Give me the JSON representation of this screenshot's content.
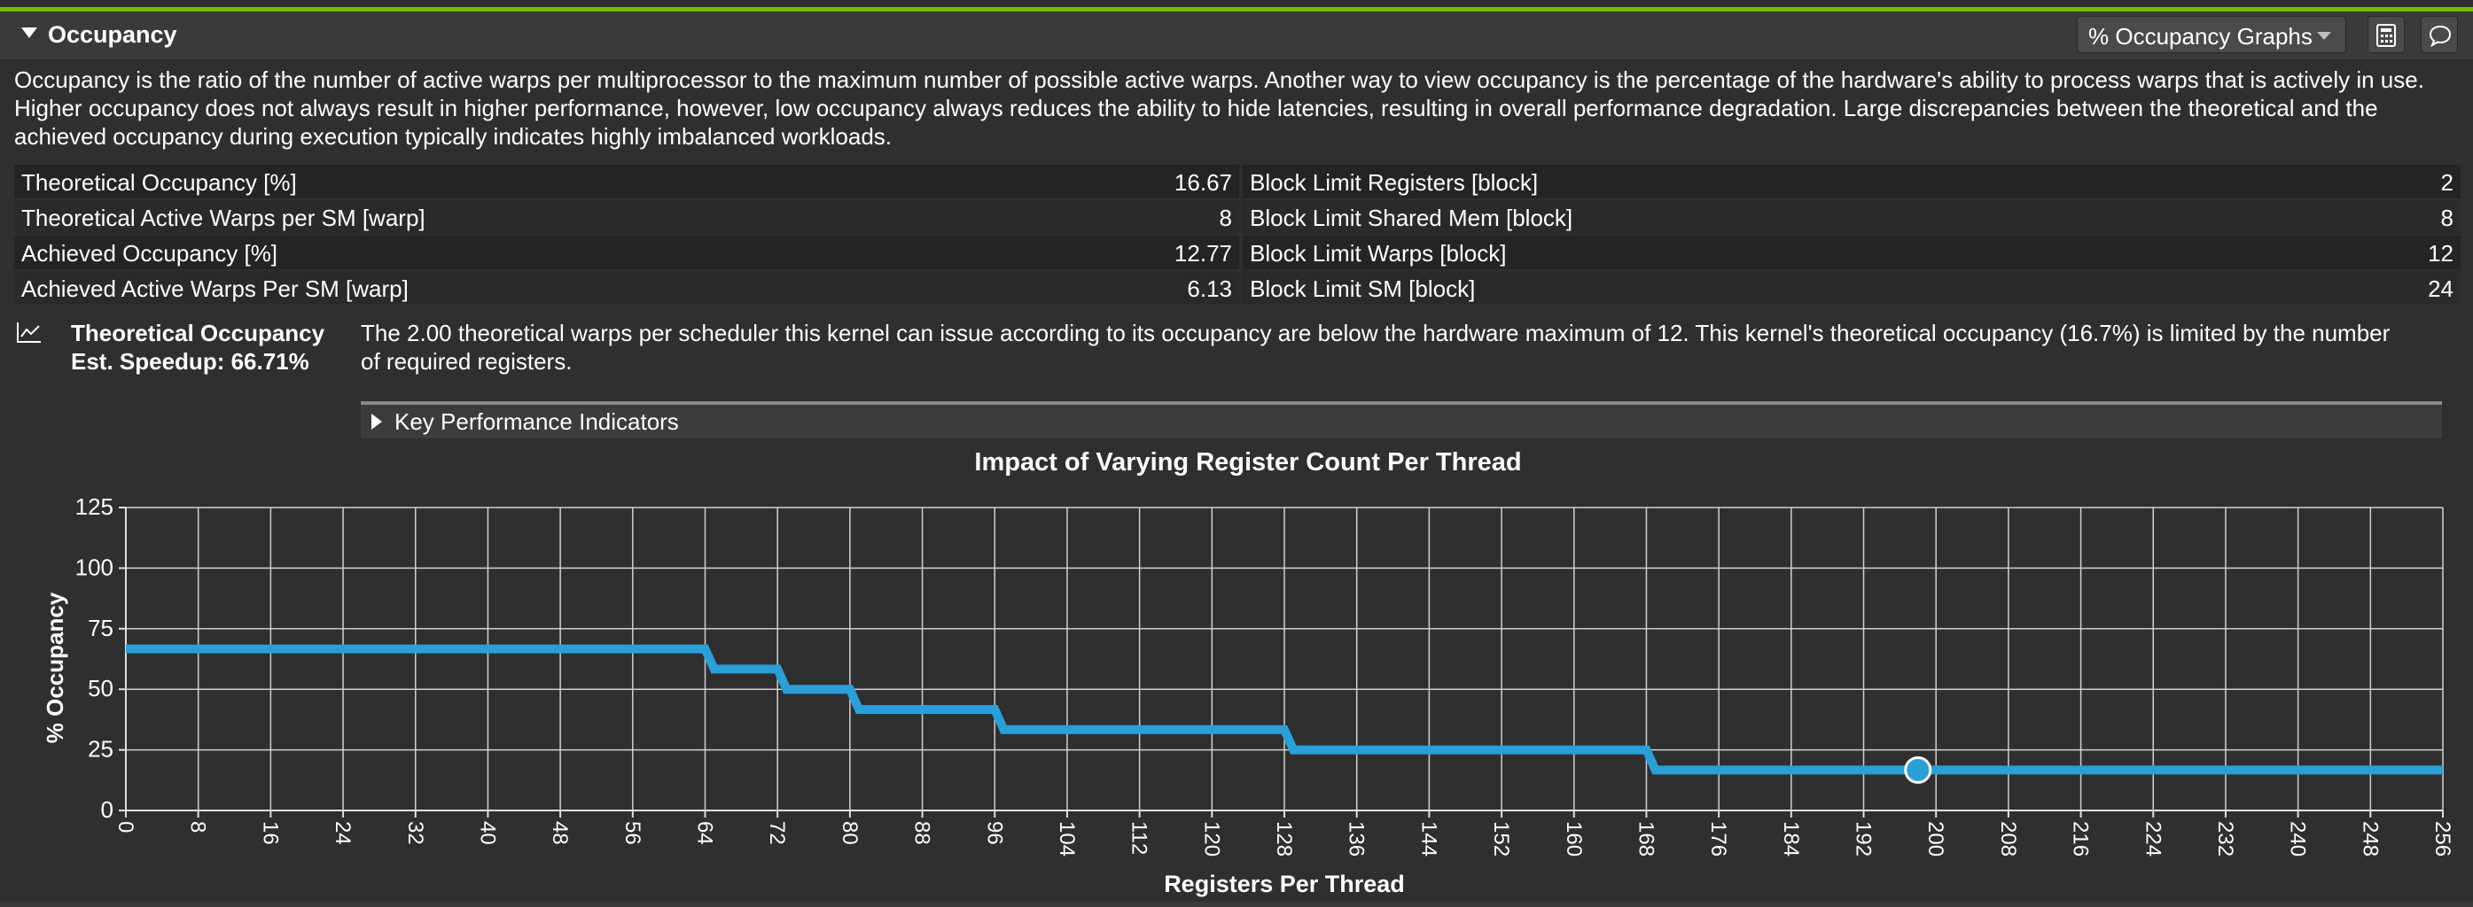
{
  "section": {
    "title": "Occupancy",
    "dropdown_label": "% Occupancy Graphs",
    "icons": [
      "calculator-icon",
      "comment-icon"
    ],
    "accent_color": "#76b900"
  },
  "description": "Occupancy is the ratio of the number of active warps per multiprocessor to the maximum number of possible active warps. Another way to view occupancy is the percentage of the hardware's ability to process warps that is actively in use. Higher occupancy does not always result in higher performance, however, low occupancy always reduces the ability to hide latencies, resulting in overall performance degradation. Large discrepancies between the theoretical and the achieved occupancy during execution typically indicates highly imbalanced workloads.",
  "metrics": [
    {
      "left_label": "Theoretical Occupancy [%]",
      "left_value": "16.67",
      "right_label": "Block Limit Registers [block]",
      "right_value": "2"
    },
    {
      "left_label": "Theoretical Active Warps per SM [warp]",
      "left_value": "8",
      "right_label": "Block Limit Shared Mem [block]",
      "right_value": "8"
    },
    {
      "left_label": "Achieved Occupancy [%]",
      "left_value": "12.77",
      "right_label": "Block Limit Warps [block]",
      "right_value": "12"
    },
    {
      "left_label": "Achieved Active Warps Per SM [warp]",
      "left_value": "6.13",
      "right_label": "Block Limit SM [block]",
      "right_value": "24"
    }
  ],
  "rule": {
    "title": "Theoretical Occupancy",
    "speedup": "Est. Speedup: 66.71%",
    "text": "The 2.00 theoretical warps per scheduler this kernel can issue according to its occupancy are below the hardware maximum of 12. This kernel's theoretical occupancy (16.7%) is limited by the number of required registers."
  },
  "kpi": {
    "label": "Key Performance Indicators"
  },
  "chart_data": {
    "type": "line",
    "title": "Impact of Varying Register Count Per Thread",
    "xlabel": "Registers Per Thread",
    "ylabel": "% Occupancy",
    "xlim": [
      0,
      256
    ],
    "ylim": [
      0,
      125
    ],
    "xticks": [
      0,
      8,
      16,
      24,
      32,
      40,
      48,
      56,
      64,
      72,
      80,
      88,
      96,
      104,
      112,
      120,
      128,
      136,
      144,
      152,
      160,
      168,
      176,
      184,
      192,
      200,
      208,
      216,
      224,
      232,
      240,
      248,
      256
    ],
    "yticks": [
      0,
      25,
      50,
      75,
      100,
      125
    ],
    "grid": true,
    "line_color": "#2a9fd8",
    "series": [
      {
        "x": [
          0,
          64,
          65,
          72,
          73,
          80,
          81,
          96,
          97,
          128,
          129,
          168,
          169,
          256
        ],
        "values": [
          66.67,
          66.67,
          58.33,
          58.33,
          50,
          50,
          41.67,
          41.67,
          33.33,
          33.33,
          25,
          25,
          16.67,
          16.67
        ]
      }
    ],
    "marker": {
      "x": 198,
      "value": 16.67
    }
  }
}
